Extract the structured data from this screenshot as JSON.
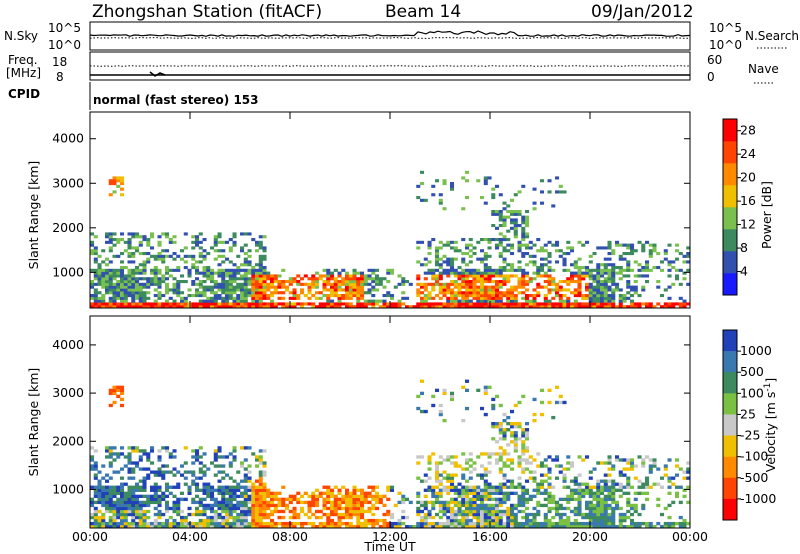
{
  "header": {
    "station": "Zhongshan Station (fitACF)",
    "beam": "Beam 14",
    "date": "09/Jan/2012"
  },
  "top_panels": {
    "nsky_label": "N.Sky",
    "nsky_ticks": [
      "10^5",
      "10^0"
    ],
    "nsearch_label": "N.Search",
    "nsearch_ticks": [
      "10^5",
      "10^0"
    ],
    "freq_label_line1": "Freq.",
    "freq_label_line2": "[MHz]",
    "freq_ticks": [
      "18",
      "8"
    ],
    "nave_label": "Nave",
    "nave_ticks": [
      "60",
      "0"
    ],
    "cpid_label": "CPID",
    "cpid_text": "normal (fast stereo) 153"
  },
  "chart_data": [
    {
      "type": "heatmap",
      "title": "",
      "ylabel": "Slant Range [km]",
      "xlabel": "",
      "x_ticks": [
        "00:00",
        "04:00",
        "08:00",
        "12:00",
        "16:00",
        "20:00",
        "00:00"
      ],
      "xlim_hours": [
        0,
        24
      ],
      "ylim": [
        200,
        4600
      ],
      "y_ticks": [
        1000,
        2000,
        3000,
        4000
      ],
      "colorbar_label": "Power [dB]",
      "colorbar_ticks": [
        4,
        8,
        12,
        16,
        20,
        24,
        28
      ],
      "colorbar_range": [
        0,
        30
      ],
      "colors": [
        "#1a1aff",
        "#3150b0",
        "#3d8a5e",
        "#79c04e",
        "#f0c000",
        "#ff8a00",
        "#ff4500",
        "#ff0000"
      ],
      "grid": false
    },
    {
      "type": "heatmap",
      "title": "",
      "ylabel": "Slant Range [km]",
      "xlabel": "Time UT",
      "x_ticks": [
        "00:00",
        "04:00",
        "08:00",
        "12:00",
        "16:00",
        "20:00",
        "00:00"
      ],
      "xlim_hours": [
        0,
        24
      ],
      "ylim": [
        200,
        4600
      ],
      "y_ticks": [
        1000,
        2000,
        3000,
        4000
      ],
      "colorbar_label": "Velocity [m s^-1]",
      "colorbar_ticks": [
        "1000",
        "500",
        "100",
        "25",
        "-25",
        "-100",
        "-500",
        "-1000"
      ],
      "colors": [
        "#2041b8",
        "#3a78b0",
        "#3d8a5e",
        "#7ac143",
        "#c8c8c8",
        "#f0c000",
        "#ff8a00",
        "#ff4500",
        "#ff0000"
      ],
      "grid": false
    }
  ]
}
